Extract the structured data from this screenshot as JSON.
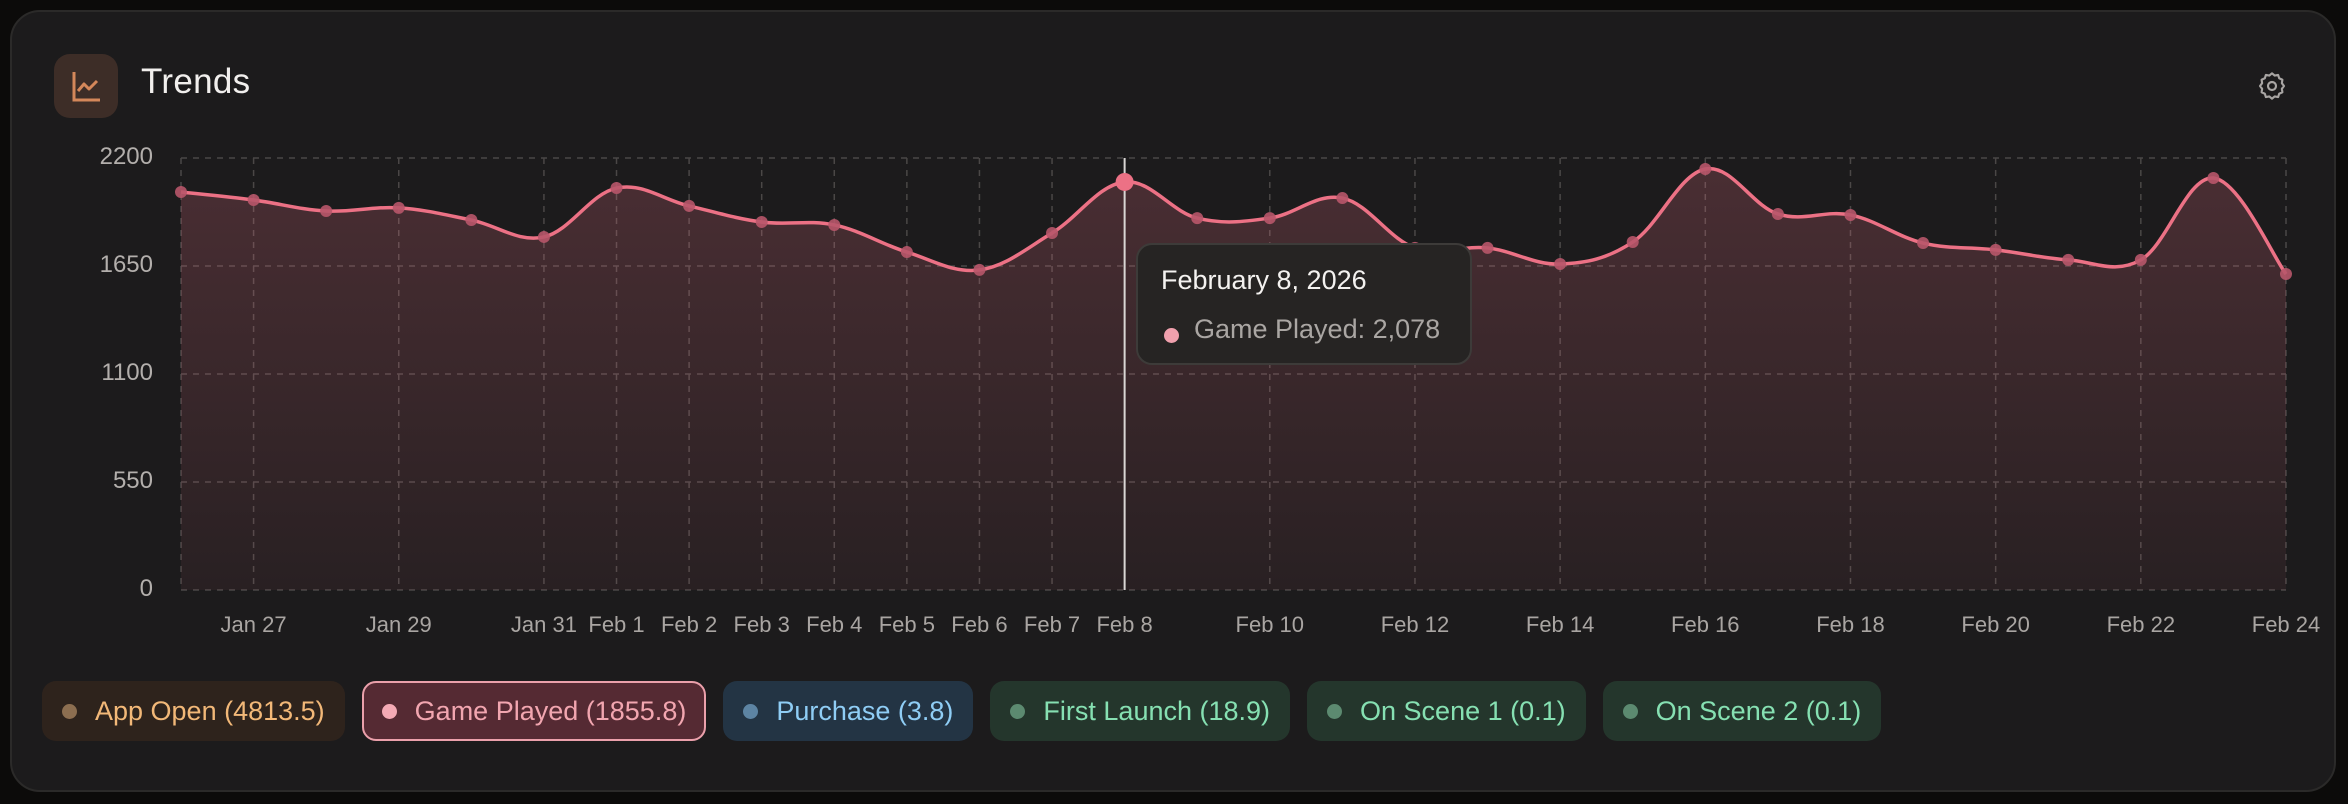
{
  "header": {
    "title": "Trends",
    "icon": "line-chart-icon",
    "settings_icon": "gear-icon"
  },
  "colors": {
    "accent_game_played": "#ec7185",
    "icon_orange": "#d4875a",
    "grid": "#4a4746",
    "crosshair": "#d9d6d4"
  },
  "chart": {
    "y_ticks": [
      "2200",
      "1650",
      "1100",
      "550",
      "0"
    ],
    "x_ticks": [
      "Jan 27",
      "Jan 29",
      "Jan 31",
      "Feb 1",
      "Feb 2",
      "Feb 3",
      "Feb 4",
      "Feb 5",
      "Feb 6",
      "Feb 7",
      "Feb 8",
      "Feb 10",
      "Feb 12",
      "Feb 14",
      "Feb 16",
      "Feb 18",
      "Feb 20",
      "Feb 22",
      "Feb 24"
    ]
  },
  "tooltip": {
    "date": "February 8, 2026",
    "series_label": "Game Played: 2,078",
    "dot_color": "#f0a0ad"
  },
  "legend": [
    {
      "label": "App Open (4813.5)",
      "bg": "#2e231c",
      "text": "#f2b878",
      "dot": "#8c6e50",
      "border": "transparent",
      "selected": false
    },
    {
      "label": "Game Played (1855.8)",
      "bg": "#552a33",
      "text": "#f2a6b0",
      "dot": "#f4aab5",
      "border": "#eba0ab",
      "selected": true
    },
    {
      "label": "Purchase (3.8)",
      "bg": "#233444",
      "text": "#8fcdf5",
      "dot": "#5d84a3",
      "border": "transparent",
      "selected": false
    },
    {
      "label": "First Launch (18.9)",
      "bg": "#24362c",
      "text": "#86e0b2",
      "dot": "#5c8a70",
      "border": "transparent",
      "selected": false
    },
    {
      "label": "On Scene 1 (0.1)",
      "bg": "#24362c",
      "text": "#86e0b2",
      "dot": "#5c8a70",
      "border": "transparent",
      "selected": false
    },
    {
      "label": "On Scene 2 (0.1)",
      "bg": "#24362c",
      "text": "#86e0b2",
      "dot": "#5c8a70",
      "border": "transparent",
      "selected": false
    }
  ],
  "chart_data": {
    "type": "area",
    "title": "Trends",
    "xlabel": "",
    "ylabel": "",
    "ylim": [
      0,
      2200
    ],
    "y_ticks": [
      0,
      550,
      1100,
      1650,
      2200
    ],
    "grid": true,
    "legend_position": "bottom",
    "x": [
      "Jan 26",
      "Jan 27",
      "Jan 28",
      "Jan 29",
      "Jan 30",
      "Jan 31",
      "Feb 1",
      "Feb 2",
      "Feb 3",
      "Feb 4",
      "Feb 5",
      "Feb 6",
      "Feb 7",
      "Feb 8",
      "Feb 9",
      "Feb 10",
      "Feb 11",
      "Feb 12",
      "Feb 13",
      "Feb 14",
      "Feb 15",
      "Feb 16",
      "Feb 17",
      "Feb 18",
      "Feb 19",
      "Feb 20",
      "Feb 21",
      "Feb 22",
      "Feb 23",
      "Feb 24"
    ],
    "series": [
      {
        "name": "Game Played",
        "color": "#ec7185",
        "values": [
          2027,
          1986,
          1930,
          1946,
          1884,
          1798,
          2047,
          1956,
          1874,
          1859,
          1721,
          1630,
          1818,
          2078,
          1894,
          1894,
          1996,
          1742,
          1742,
          1660,
          1772,
          2144,
          1915,
          1910,
          1767,
          1732,
          1681,
          1681,
          2098,
          1609
        ]
      }
    ],
    "legend_entries": [
      "App Open (4813.5)",
      "Game Played (1855.8)",
      "Purchase (3.8)",
      "First Launch (18.9)",
      "On Scene 1 (0.1)",
      "On Scene 2 (0.1)"
    ],
    "annotations": [
      {
        "x": "Feb 8",
        "text": "February 8, 2026 — Game Played: 2,078"
      }
    ]
  }
}
